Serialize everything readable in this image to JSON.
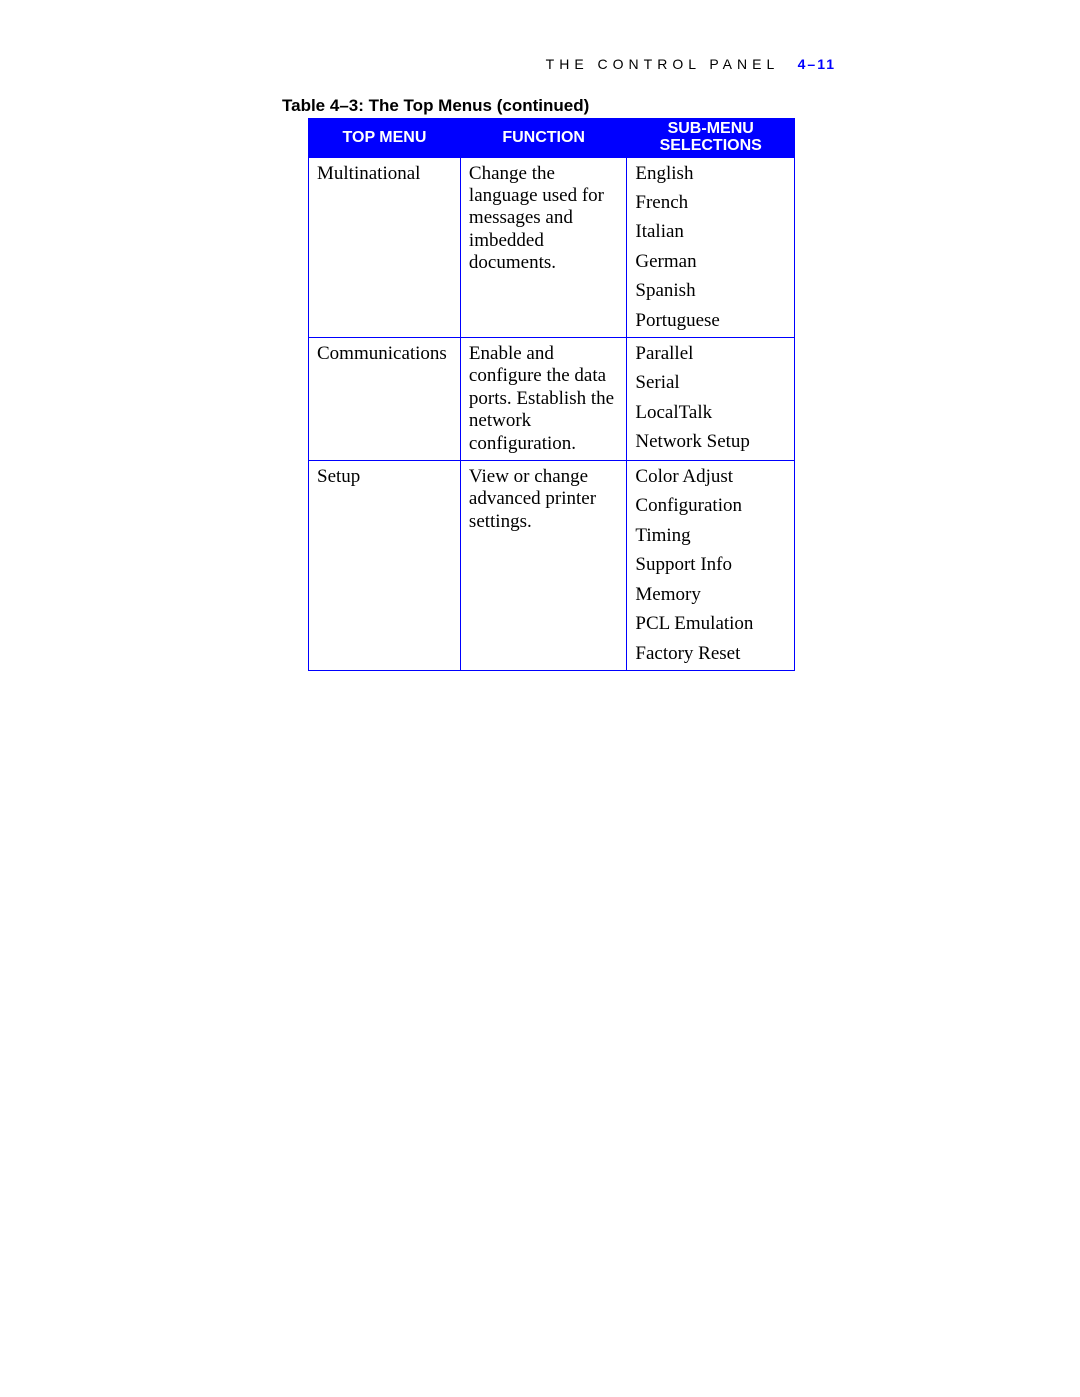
{
  "page": {
    "running_head_text": "THE CONTROL PANEL",
    "page_number": "4–11",
    "caption": "Table 4–3:  The Top Menus (continued)"
  },
  "table": {
    "border_color": "#0000ff",
    "header_bg": "#0000ff",
    "header_fg": "#ffffff",
    "headers": {
      "top_menu": "TOP MENU",
      "function": "FUNCTION",
      "sub_menu_line1": "SUB-MENU",
      "sub_menu_line2": "SELECTIONS"
    },
    "rows": [
      {
        "top_menu": "Multinational",
        "function": "Change the language used for messages and imbedded documents.",
        "sub": [
          "English",
          "French",
          "Italian",
          "German",
          "Spanish",
          "Portuguese"
        ]
      },
      {
        "top_menu": "Communications",
        "function": "Enable and configure the data ports. Establish the network configuration.",
        "sub": [
          "Parallel",
          "Serial",
          "LocalTalk",
          "Network Setup"
        ]
      },
      {
        "top_menu": "Setup",
        "function": "View or change advanced printer settings.",
        "sub": [
          "Color Adjust",
          "Configuration",
          "Timing",
          "Support Info",
          "Memory",
          "PCL Emulation",
          "Factory Reset"
        ]
      }
    ]
  },
  "style": {
    "body_font": "Times New Roman",
    "header_font": "Arial",
    "body_fontsize_pt": 14,
    "header_fontsize_pt": 12,
    "accent_color": "#0000ff",
    "text_color": "#000000",
    "background_color": "#ffffff"
  }
}
